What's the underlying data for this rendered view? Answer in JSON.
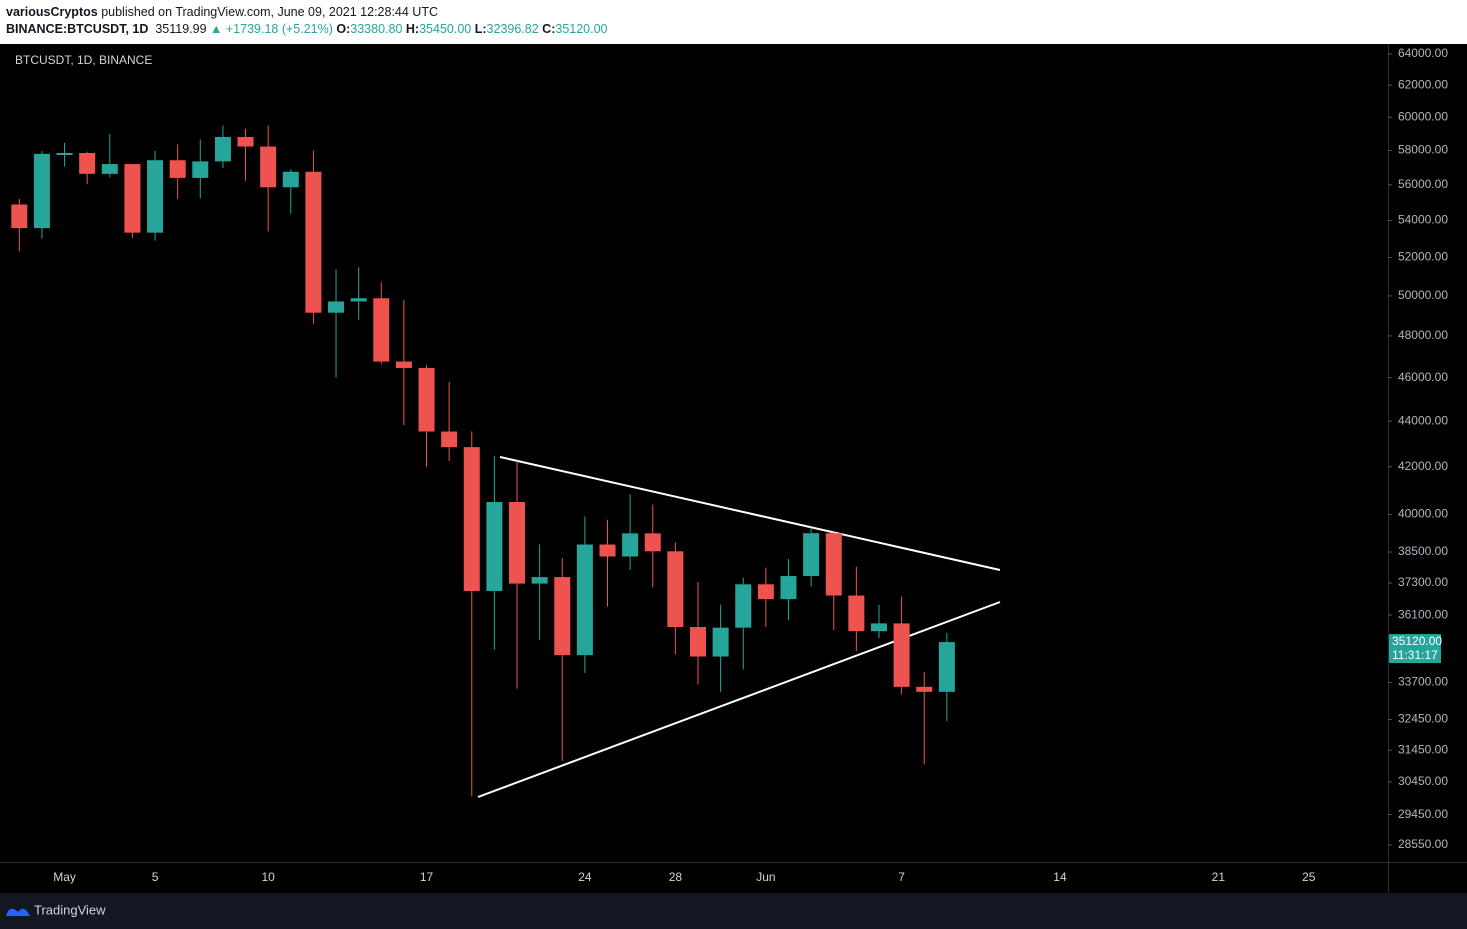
{
  "header": {
    "author": "variousCryptos",
    "published": "published on TradingView.com, June 09, 2021 12:28:44 UTC",
    "symbol": "BINANCE:BTCUSDT, 1D",
    "price": "35119.99",
    "change": "▲ +1739.18 (+5.21%)",
    "open_label": "O:",
    "open": "33380.80",
    "high_label": "H:",
    "high": "35450.00",
    "low_label": "L:",
    "low": "32396.82",
    "close_label": "C:",
    "close": "35120.00"
  },
  "footer": {
    "brand": "TradingView"
  },
  "chart_data": {
    "type": "candlestick",
    "symbol_label": "BTCUSDT, 1D, BINANCE",
    "categories": [
      null,
      null,
      "May",
      null,
      null,
      null,
      "5",
      null,
      null,
      null,
      null,
      "10",
      null,
      null,
      null,
      null,
      null,
      null,
      "17",
      null,
      null,
      null,
      null,
      null,
      null,
      "24",
      null,
      null,
      null,
      "28",
      null,
      null,
      null,
      "Jun",
      null,
      null,
      null,
      null,
      null,
      "7",
      null,
      null,
      null,
      null,
      null,
      null,
      "14",
      null,
      null,
      null,
      null,
      null,
      null,
      "21",
      null,
      null,
      null,
      "25",
      null,
      null,
      null
    ],
    "open": [
      54889,
      53580,
      57800,
      57850,
      56631,
      57200,
      53333,
      57424,
      56397,
      57356,
      58803,
      58232,
      55860,
      56754,
      49150,
      49716,
      49880,
      46760,
      46456,
      43538,
      42850,
      37000,
      40516,
      37280,
      37528,
      34655,
      38796,
      38324,
      39241,
      38529,
      35663,
      34605,
      35641,
      37253,
      36694,
      37568,
      39246,
      36829,
      35513,
      35796,
      33552,
      33380.8,
      null,
      null,
      null,
      null,
      null,
      null,
      null,
      null,
      null,
      null,
      null,
      null,
      null,
      null,
      null,
      null,
      null,
      null,
      null
    ],
    "high": [
      55195,
      57963,
      58458,
      57930,
      58981,
      57200,
      57980,
      58360,
      58650,
      59500,
      59300,
      59500,
      56900,
      58000,
      51367,
      51483,
      50700,
      49800,
      46600,
      45800,
      43546,
      42451,
      42250,
      38800,
      38270,
      39920,
      39791,
      40841,
      40412,
      38877,
      37338,
      36488,
      37499,
      37894,
      38225,
      39476,
      39289,
      37925,
      36480,
      36790,
      34069,
      35450,
      null,
      null,
      null,
      null,
      null,
      null,
      null,
      null,
      null,
      null,
      null,
      null,
      null,
      null,
      null,
      null,
      null,
      null,
      null
    ],
    "low": [
      52330,
      53013,
      57050,
      56035,
      56436,
      53046,
      52900,
      55200,
      55241,
      56975,
      56235,
      53400,
      54370,
      48600,
      46000,
      48800,
      46650,
      43825,
      42000,
      42250,
      30000,
      34850,
      33488,
      35200,
      31111,
      34031,
      36419,
      37800,
      37134,
      34684,
      33632,
      33379,
      34153,
      35666,
      35920,
      37170,
      35555,
      34800,
      35258,
      33300,
      31000,
      32396.82,
      null,
      null,
      null,
      null,
      null,
      null,
      null,
      null,
      null,
      null,
      null,
      null,
      null,
      null,
      null,
      null,
      null,
      null,
      null
    ],
    "close": [
      53580,
      57800,
      57850,
      56631,
      57200,
      53333,
      57424,
      56397,
      57356,
      58803,
      58232,
      55860,
      56754,
      49150,
      49716,
      49880,
      46760,
      46456,
      43538,
      42850,
      37000,
      40516,
      37280,
      37528,
      34655,
      38796,
      38324,
      39241,
      38529,
      35663,
      34605,
      35641,
      37253,
      36694,
      37568,
      39246,
      36829,
      35513,
      35796,
      33552,
      33380.8,
      35120,
      null,
      null,
      null,
      null,
      null,
      null,
      null,
      null,
      null,
      null,
      null,
      null,
      null,
      null,
      null,
      null,
      null,
      null,
      null
    ],
    "up_color": "#26a69a",
    "down_color": "#ef5350",
    "log_scale": true,
    "grid": false,
    "ylim": [
      28060,
      64590
    ],
    "yticks": [
      {
        "value": 64000,
        "label": "64000.00"
      },
      {
        "value": 62000,
        "label": "62000.00"
      },
      {
        "value": 60000,
        "label": "60000.00"
      },
      {
        "value": 58000,
        "label": "58000.00"
      },
      {
        "value": 56000,
        "label": "56000.00"
      },
      {
        "value": 54000,
        "label": "54000.00"
      },
      {
        "value": 52000,
        "label": "52000.00"
      },
      {
        "value": 50000,
        "label": "50000.00"
      },
      {
        "value": 48000,
        "label": "48000.00"
      },
      {
        "value": 46000,
        "label": "46000.00"
      },
      {
        "value": 44000,
        "label": "44000.00"
      },
      {
        "value": 42000,
        "label": "42000.00"
      },
      {
        "value": 40000,
        "label": "40000.00"
      },
      {
        "value": 38500,
        "label": "38500.00"
      },
      {
        "value": 37300,
        "label": "37300.00"
      },
      {
        "value": 36100,
        "label": "36100.00"
      },
      {
        "value": 33700,
        "label": "33700.00"
      },
      {
        "value": 32450,
        "label": "32450.00"
      },
      {
        "value": 31450,
        "label": "31450.00"
      },
      {
        "value": 30450,
        "label": "30450.00"
      },
      {
        "value": 29450,
        "label": "29450.00"
      },
      {
        "value": 28550,
        "label": "28550.00"
      }
    ],
    "last_price": {
      "value": 35120,
      "label": "35120.00"
    },
    "countdown": "11:31:17"
  }
}
